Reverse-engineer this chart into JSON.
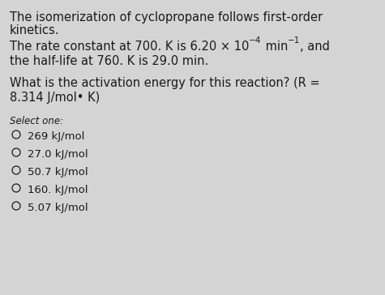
{
  "background_color": "#d4d4d4",
  "text_color": "#1a1a1a",
  "main_fontsize": 10.5,
  "select_fontsize": 8.5,
  "option_fontsize": 9.5,
  "line1": "The isomerization of cyclopropane follows first-order",
  "line2": "kinetics.",
  "line3_pre": "The rate constant at 700. K is 6.20 × 10",
  "line3_sup1": "−4",
  "line3_mid": " min",
  "line3_sup2": "−1",
  "line3_post": ", and",
  "line4": "the half-life at 760. K is 29.0 min.",
  "line5": "What is the activation energy for this reaction? (R =",
  "line6": "8.314 J/mol• K)",
  "select_label": "Select one:",
  "options": [
    "269 kJ/mol",
    "27.0 kJ/mol",
    "50.7 kJ/mol",
    "160. kJ/mol",
    "5.07 kJ/mol"
  ]
}
